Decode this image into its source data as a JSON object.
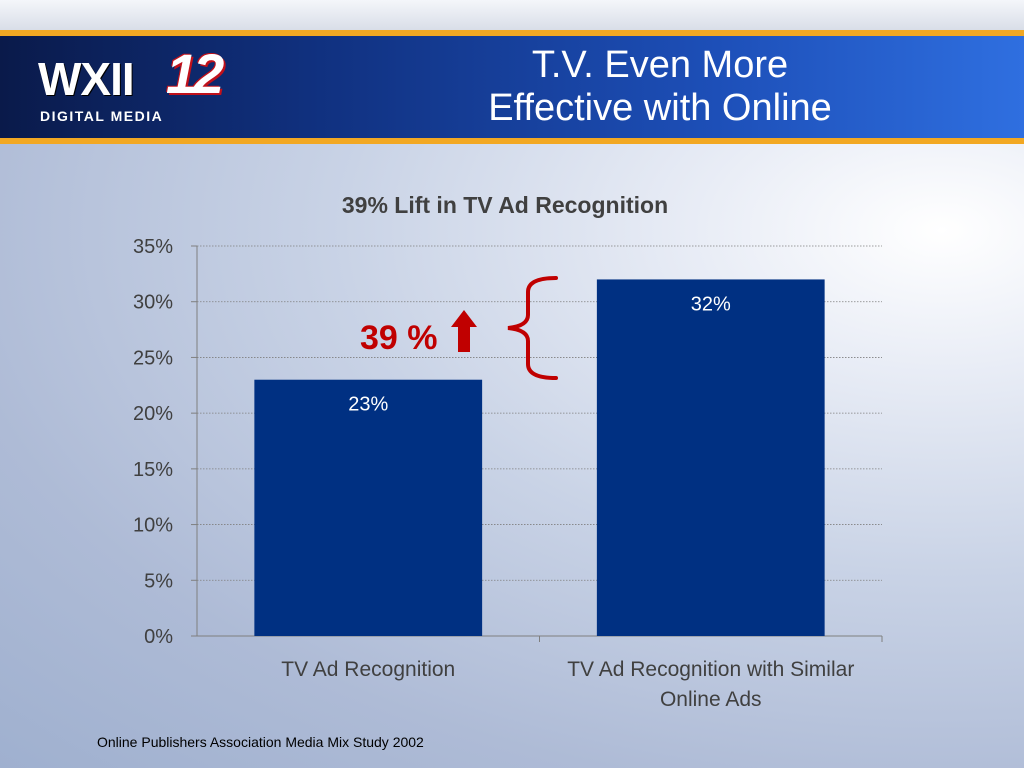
{
  "header": {
    "logo_main": "WXII",
    "logo_number": "12",
    "logo_sub": "DIGITAL MEDIA",
    "title_line1": "T.V. Even More",
    "title_line2": "Effective with Online"
  },
  "chart_data": {
    "type": "bar",
    "title": "39% Lift in TV Ad Recognition",
    "categories": [
      "TV Ad Recognition",
      "TV Ad Recognition with Similar Online Ads"
    ],
    "category_lines": [
      [
        "TV Ad Recognition"
      ],
      [
        "TV Ad Recognition with Similar",
        "Online Ads"
      ]
    ],
    "values": [
      23,
      32
    ],
    "data_labels": [
      "23%",
      "32%"
    ],
    "ylim": [
      0,
      35
    ],
    "yticks": [
      0,
      5,
      10,
      15,
      20,
      25,
      30,
      35
    ],
    "ytick_labels": [
      "0%",
      "5%",
      "10%",
      "15%",
      "20%",
      "25%",
      "30%",
      "35%"
    ],
    "xlabel": "",
    "ylabel": "",
    "grid": true,
    "bar_color": "#003082",
    "annotation": {
      "text": "39 %",
      "color": "#c00000",
      "icon": "arrow-up-icon",
      "bracket": "left-curly-brace"
    }
  },
  "footer": {
    "source": "Online Publishers Association Media Mix Study 2002"
  }
}
